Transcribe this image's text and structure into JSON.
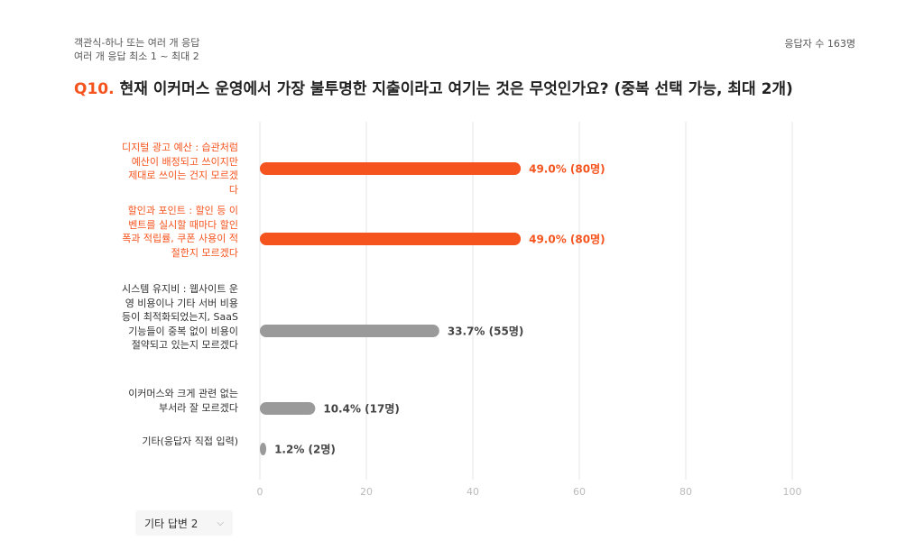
{
  "header": {
    "type_line": "객관식-하나 또는 여러 개 응답",
    "rule_line": "여러 개 응답 최소 1 ~ 최대 2",
    "respondents": "응답자 수 163명"
  },
  "question": {
    "number": "Q10.",
    "text": "현재 이커머스 운영에서 가장 불투명한 지출이라고 여기는 것은 무엇인가요? (중복 선택 가능, 최대 2개)"
  },
  "colors": {
    "highlight": "#f5541e",
    "normal": "#9a9a9a",
    "grid": "#e6e6e6",
    "tick": "#bbbbbb"
  },
  "chart_data": {
    "type": "bar",
    "orientation": "horizontal",
    "xlim": [
      0,
      100
    ],
    "xticks": [
      "0",
      "20",
      "40",
      "60",
      "80",
      "100"
    ],
    "categories": [
      "디지털 광고 예산 : 습관처럼 예산이 배정되고 쓰이지만 제대로 쓰이는 건지 모르겠다",
      "할인과 포인트 : 할인 등 이벤트를 실시할 때마다 할인 폭과 적립률, 쿠폰 사용이 적절한지 모르겠다",
      "시스템 유지비 : 웹사이트 운영 비용이나 기타 서버 비용 등이 최적화되었는지, SaaS 기능들이 중복 없이 비용이 절약되고 있는지 모르겠다",
      "이커머스와 크게 관련 없는 부서라 잘 모르겠다",
      "기타(응답자 직접 입력)"
    ],
    "values": [
      49.0,
      49.0,
      33.7,
      10.4,
      1.2
    ],
    "value_labels": [
      "49.0% (80명)",
      "49.0% (80명)",
      "33.7% (55명)",
      "10.4% (17명)",
      "1.2% (2명)"
    ],
    "highlighted": [
      true,
      true,
      false,
      false,
      false
    ],
    "grid": true
  },
  "other_button": {
    "label": "기타 답변 2",
    "icon": "chevron-down-icon",
    "chevron": "⌵"
  }
}
